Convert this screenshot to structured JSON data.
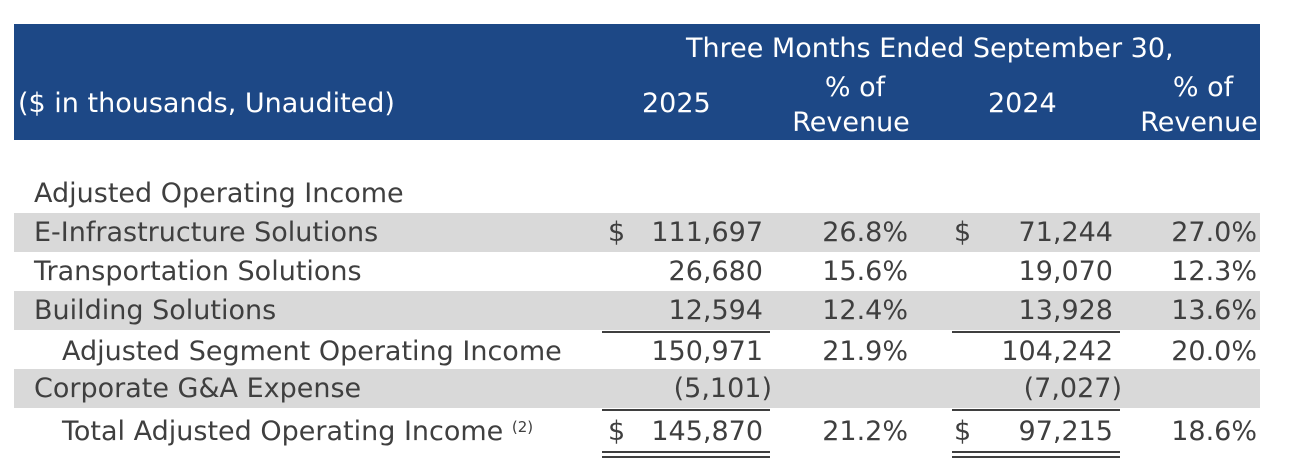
{
  "table": {
    "units_label": "($ in thousands, Unaudited)",
    "period_header": "Three Months Ended September 30,",
    "columns": [
      {
        "year": "2025",
        "pct_label_line1": "% of",
        "pct_label_line2": "Revenue"
      },
      {
        "year": "2024",
        "pct_label_line1": "% of",
        "pct_label_line2": "Revenue"
      }
    ],
    "section_title": "Adjusted Operating Income",
    "currency_symbol": "$",
    "rows": [
      {
        "label": "E-Infrastructure Solutions",
        "v2025": "111,697",
        "p2025": "26.8%",
        "v2024": "71,244",
        "p2024": "27.0%"
      },
      {
        "label": "Transportation Solutions",
        "v2025": "26,680",
        "p2025": "15.6%",
        "v2024": "19,070",
        "p2024": "12.3%"
      },
      {
        "label": "Building Solutions",
        "v2025": "12,594",
        "p2025": "12.4%",
        "v2024": "13,928",
        "p2024": "13.6%"
      },
      {
        "label": "Adjusted Segment Operating Income",
        "v2025": "150,971",
        "p2025": "21.9%",
        "v2024": "104,242",
        "p2024": "20.0%"
      },
      {
        "label": "Corporate G&A Expense",
        "v2025": "(5,101)",
        "p2025": "",
        "v2024": "(7,027)",
        "p2024": ""
      },
      {
        "label": "Total Adjusted Operating Income",
        "footnote": "(2)",
        "v2025": "145,870",
        "p2025": "21.2%",
        "v2024": "97,215",
        "p2024": "18.6%"
      }
    ]
  }
}
